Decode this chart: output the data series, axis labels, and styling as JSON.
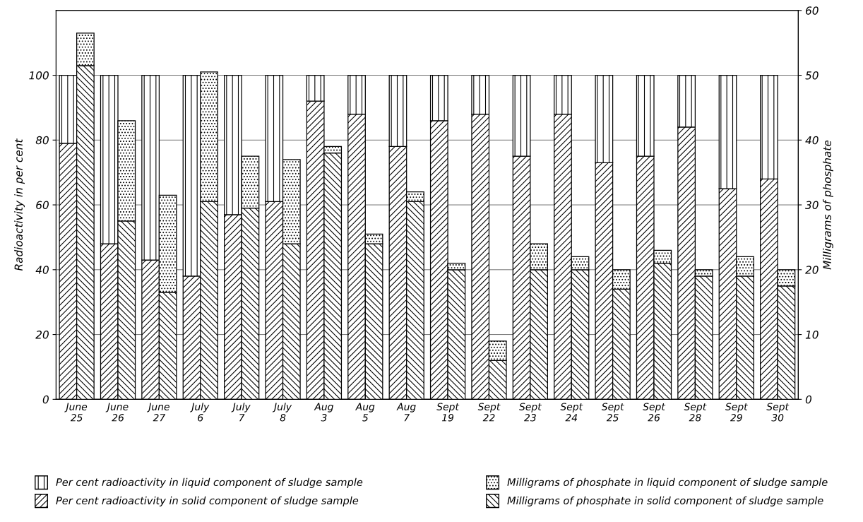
{
  "chart_data": {
    "type": "bar",
    "stacked": true,
    "categories": [
      "June 25",
      "June 26",
      "June 27",
      "July 6",
      "July 7",
      "July 8",
      "Aug 3",
      "Aug 5",
      "Aug 7",
      "Sept 19",
      "Sept 22",
      "Sept 23",
      "Sept 24",
      "Sept 25",
      "Sept 26",
      "Sept 28",
      "Sept 29",
      "Sept 30"
    ],
    "series": [
      {
        "name": "Per cent radioactivity in solid component of sludge sample",
        "color": "#000000",
        "values": [
          79,
          48,
          43,
          38,
          57,
          61,
          92,
          88,
          78,
          86,
          88,
          75,
          88,
          73,
          75,
          84,
          65,
          68
        ]
      },
      {
        "name": "Per cent radioactivity in liquid component of sludge sample",
        "color": "#000000",
        "values": [
          21,
          52,
          57,
          62,
          43,
          39,
          8,
          12,
          22,
          14,
          12,
          25,
          12,
          27,
          25,
          16,
          35,
          32
        ]
      },
      {
        "name": "Milligrams of phosphate in solid component of sludge sample",
        "color": "#000000",
        "axis": "y2",
        "values": [
          51.5,
          27.5,
          16.5,
          30.5,
          29.5,
          24,
          38,
          24,
          30.5,
          20,
          6,
          20,
          20,
          17,
          21,
          19,
          19,
          17.5
        ]
      },
      {
        "name": "Milligrams of phosphate in liquid component of sludge sample",
        "color": "#000000",
        "axis": "y2",
        "values": [
          5,
          15.5,
          15,
          20,
          8,
          13,
          1,
          1.5,
          1.5,
          1,
          3,
          4,
          2,
          3,
          2,
          1,
          3,
          2.5
        ]
      }
    ],
    "ylabel": "Radioactivity in per cent",
    "y2label": "Milligrams of phosphate",
    "ylim": [
      0,
      120
    ],
    "yticks": [
      0,
      20,
      40,
      60,
      80,
      100
    ],
    "y2lim": [
      0,
      60
    ],
    "y2ticks": [
      0,
      10,
      20,
      30,
      40,
      50,
      60
    ],
    "grid": "y",
    "legend": "bottom"
  }
}
